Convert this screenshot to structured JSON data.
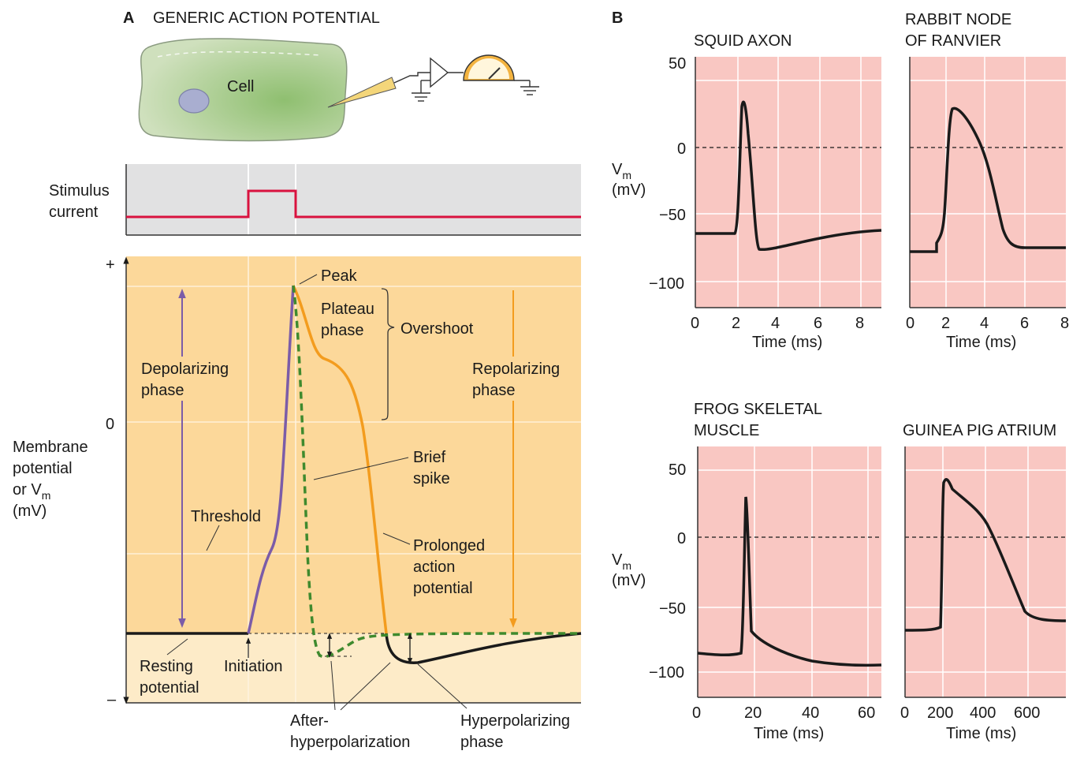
{
  "panel_a": {
    "letter": "A",
    "title": "GENERIC ACTION POTENTIAL",
    "cell_label": "Cell",
    "stimulus_label": [
      "Stimulus",
      "current"
    ],
    "yaxis_label": [
      "Membrane",
      "potential",
      "or V",
      "m",
      "(mV)"
    ],
    "plus_tick": "+",
    "minus_tick": "–",
    "zero_tick": "0",
    "labels": {
      "peak": "Peak",
      "plateau": [
        "Plateau",
        "phase"
      ],
      "overshoot": "Overshoot",
      "depolarizing": [
        "Depolarizing",
        "phase"
      ],
      "repolarizing": [
        "Repolarizing",
        "phase"
      ],
      "brief_spike": [
        "Brief",
        "spike"
      ],
      "threshold": "Threshold",
      "prolonged": [
        "Prolonged",
        "action",
        "potential"
      ],
      "resting": [
        "Resting",
        "potential"
      ],
      "initiation": "Initiation",
      "after_hyper": [
        "After-",
        "hyperpolarization"
      ],
      "hyper_phase": [
        "Hyperpolarizing",
        "phase"
      ]
    },
    "colors": {
      "stimulus_bg": "#e1e1e2",
      "stimulus_line": "#d9123f",
      "plot_upper": "#fcd89a",
      "plot_lower": "#fdebc8",
      "cell_fill": "#c3d9ad",
      "depolarizing": "#7b5ca8",
      "repolarizing": "#f39c1e",
      "brief_spike": "#3f8a2e"
    }
  },
  "panel_b": {
    "letter": "B",
    "ylabel": [
      "V",
      "m",
      "(mV)"
    ],
    "xlabel": "Time (ms)",
    "bg_color": "#f9c7c2",
    "plots": [
      {
        "title": [
          "SQUID AXON"
        ],
        "xticks": [
          "0",
          "2",
          "4",
          "6",
          "8"
        ],
        "yticks": [
          "50",
          "0",
          "−50",
          "−100"
        ]
      },
      {
        "title": [
          "RABBIT NODE",
          "OF RANVIER"
        ],
        "xticks": [
          "0",
          "2",
          "4",
          "6",
          "8"
        ],
        "yticks": []
      },
      {
        "title": [
          "FROG SKELETAL",
          "MUSCLE"
        ],
        "xticks": [
          "0",
          "20",
          "40",
          "60"
        ],
        "yticks": [
          "50",
          "0",
          "−50",
          "−100"
        ]
      },
      {
        "title": [
          "GUINEA PIG ATRIUM"
        ],
        "xticks": [
          "0",
          "200",
          "400",
          "600"
        ],
        "yticks": []
      }
    ]
  }
}
